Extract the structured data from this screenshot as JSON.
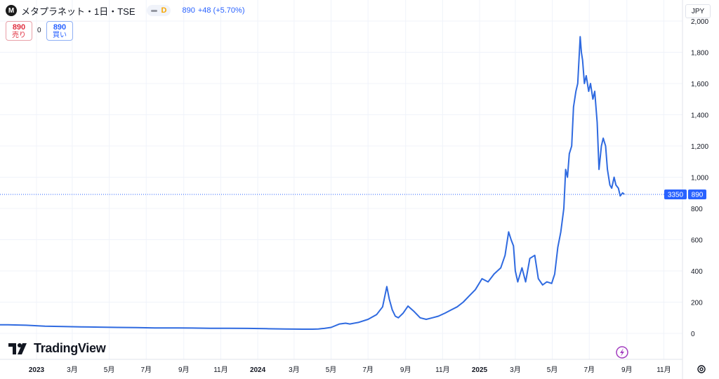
{
  "header": {
    "symbol_icon": "M",
    "title": "メタプラネット・1日・TSE",
    "pill_letter": "D",
    "price": "890",
    "change": "+48 (+5.70%)"
  },
  "trade": {
    "sell_price": "890",
    "sell_label": "売り",
    "spread": "0",
    "buy_price": "890",
    "buy_label": "買い"
  },
  "currency": "JPY",
  "branding": {
    "logo_text": "TradingView"
  },
  "price_tags": {
    "countdown": "3350",
    "last": "890"
  },
  "colors": {
    "line": "#2f6ae0",
    "last_price_line": "#2962ff",
    "tag_bg": "#2962ff",
    "event_icon": "#a23cbf"
  },
  "icons": {
    "event": "lightning-icon",
    "settings": "gear-icon"
  },
  "chart_data": {
    "type": "line",
    "series": [
      {
        "x": [
          "2022-10-15",
          "2022-11-15",
          "2022-12-15",
          "2023-01-15",
          "2023-02-15",
          "2023-03-15",
          "2023-04-15",
          "2023-05-15",
          "2023-06-15",
          "2023-07-15",
          "2023-08-15",
          "2023-09-15",
          "2023-10-15",
          "2023-11-15",
          "2023-12-15",
          "2024-01-15",
          "2024-02-15",
          "2024-03-15",
          "2024-04-01",
          "2024-04-10",
          "2024-04-15",
          "2024-04-20",
          "2024-05-01",
          "2024-05-15",
          "2024-05-25",
          "2024-06-01",
          "2024-06-15",
          "2024-07-01",
          "2024-07-15",
          "2024-07-25",
          "2024-08-01",
          "2024-08-05",
          "2024-08-10",
          "2024-08-15",
          "2024-08-20",
          "2024-08-28",
          "2024-09-05",
          "2024-09-15",
          "2024-09-25",
          "2024-10-05",
          "2024-10-15",
          "2024-10-25",
          "2024-11-05",
          "2024-11-15",
          "2024-11-25",
          "2024-12-05",
          "2024-12-15",
          "2024-12-25",
          "2025-01-05",
          "2025-01-15",
          "2025-01-25",
          "2025-02-05",
          "2025-02-12",
          "2025-02-18",
          "2025-02-22",
          "2025-02-26",
          "2025-03-01",
          "2025-03-05",
          "2025-03-12",
          "2025-03-18",
          "2025-03-25",
          "2025-04-02",
          "2025-04-08",
          "2025-04-15",
          "2025-04-22",
          "2025-04-30",
          "2025-05-05",
          "2025-05-10",
          "2025-05-15",
          "2025-05-20",
          "2025-05-23",
          "2025-05-26",
          "2025-05-29",
          "2025-06-02",
          "2025-06-05",
          "2025-06-09",
          "2025-06-12",
          "2025-06-16",
          "2025-06-18",
          "2025-06-20",
          "2025-06-23",
          "2025-06-26",
          "2025-06-30",
          "2025-07-03",
          "2025-07-07",
          "2025-07-10",
          "2025-07-14",
          "2025-07-17",
          "2025-07-21",
          "2025-07-24",
          "2025-07-28",
          "2025-07-31",
          "2025-08-04",
          "2025-08-07",
          "2025-08-11",
          "2025-08-14",
          "2025-08-18",
          "2025-08-21",
          "2025-08-25",
          "2025-08-28"
        ],
        "values": [
          55,
          55,
          52,
          46,
          44,
          42,
          40,
          38,
          37,
          35,
          35,
          34,
          33,
          33,
          32,
          30,
          28,
          27,
          27,
          28,
          30,
          32,
          38,
          60,
          65,
          60,
          70,
          90,
          120,
          170,
          300,
          220,
          150,
          110,
          100,
          130,
          175,
          140,
          100,
          90,
          100,
          110,
          130,
          150,
          170,
          200,
          240,
          280,
          350,
          330,
          380,
          420,
          500,
          650,
          600,
          560,
          400,
          330,
          420,
          330,
          480,
          500,
          350,
          310,
          330,
          320,
          380,
          550,
          650,
          800,
          1050,
          1000,
          1150,
          1200,
          1450,
          1550,
          1600,
          1900,
          1800,
          1750,
          1600,
          1650,
          1550,
          1600,
          1500,
          1550,
          1350,
          1050,
          1200,
          1250,
          1200,
          1050,
          950,
          930,
          1000,
          950,
          930,
          880,
          900,
          890
        ]
      }
    ],
    "y_ticks": [
      "0",
      "200",
      "400",
      "600",
      "800",
      "1,000",
      "1,200",
      "1,400",
      "1,600",
      "1,800",
      "2,000"
    ],
    "x_ticks": [
      {
        "date": "2023-01-01",
        "label": "2023",
        "bold": true
      },
      {
        "date": "2023-03-01",
        "label": "3月"
      },
      {
        "date": "2023-05-01",
        "label": "5月"
      },
      {
        "date": "2023-07-01",
        "label": "7月"
      },
      {
        "date": "2023-09-01",
        "label": "9月"
      },
      {
        "date": "2023-11-01",
        "label": "11月"
      },
      {
        "date": "2024-01-01",
        "label": "2024",
        "bold": true
      },
      {
        "date": "2024-03-01",
        "label": "3月"
      },
      {
        "date": "2024-05-01",
        "label": "5月"
      },
      {
        "date": "2024-07-01",
        "label": "7月"
      },
      {
        "date": "2024-09-01",
        "label": "9月"
      },
      {
        "date": "2024-11-01",
        "label": "11月"
      },
      {
        "date": "2025-01-01",
        "label": "2025",
        "bold": true
      },
      {
        "date": "2025-03-01",
        "label": "3月"
      },
      {
        "date": "2025-05-01",
        "label": "5月"
      },
      {
        "date": "2025-07-01",
        "label": "7月"
      },
      {
        "date": "2025-09-01",
        "label": "9月"
      },
      {
        "date": "2025-11-01",
        "label": "11月"
      }
    ],
    "last_value": 890,
    "grid": true
  }
}
